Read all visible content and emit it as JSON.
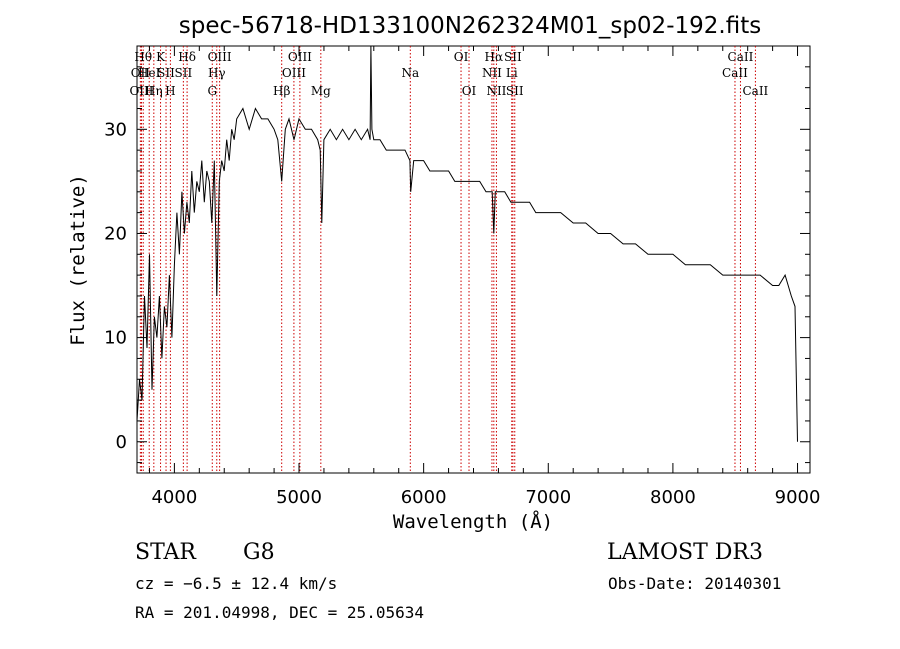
{
  "chart_data": {
    "type": "line",
    "title": "spec-56718-HD133100N262324M01_sp02-192.fits",
    "xlabel": "Wavelength (Å)",
    "ylabel": "Flux (relative)",
    "xlim": [
      3700,
      9100
    ],
    "ylim": [
      -3,
      38
    ],
    "xticks": [
      4000,
      5000,
      6000,
      7000,
      8000,
      9000
    ],
    "yticks": [
      0,
      10,
      20,
      30
    ],
    "grid": false,
    "line_color": "#000000",
    "marker_color": "#cc0000",
    "spectrum": {
      "name": "flux",
      "x": [
        3700,
        3720,
        3740,
        3760,
        3780,
        3800,
        3820,
        3840,
        3860,
        3880,
        3900,
        3920,
        3940,
        3960,
        3980,
        4000,
        4020,
        4040,
        4060,
        4080,
        4100,
        4120,
        4140,
        4160,
        4180,
        4200,
        4220,
        4240,
        4260,
        4280,
        4300,
        4320,
        4340,
        4360,
        4380,
        4400,
        4420,
        4440,
        4460,
        4480,
        4500,
        4550,
        4600,
        4650,
        4700,
        4750,
        4800,
        4830,
        4861,
        4890,
        4920,
        4960,
        5000,
        5050,
        5100,
        5150,
        5170,
        5183,
        5200,
        5250,
        5300,
        5350,
        5400,
        5450,
        5500,
        5550,
        5570,
        5577,
        5585,
        5600,
        5650,
        5700,
        5750,
        5800,
        5850,
        5890,
        5896,
        5920,
        5950,
        6000,
        6050,
        6100,
        6150,
        6200,
        6250,
        6300,
        6350,
        6400,
        6450,
        6500,
        6530,
        6550,
        6563,
        6575,
        6600,
        6650,
        6700,
        6750,
        6800,
        6850,
        6900,
        6950,
        7000,
        7100,
        7200,
        7300,
        7400,
        7500,
        7600,
        7700,
        7800,
        7900,
        8000,
        8100,
        8200,
        8300,
        8400,
        8500,
        8600,
        8700,
        8800,
        8850,
        8900,
        8950,
        8980,
        9000
      ],
      "y": [
        2,
        6,
        4,
        14,
        9,
        18,
        5,
        12,
        10,
        14,
        8,
        13,
        11,
        16,
        10,
        17,
        22,
        18,
        24,
        20,
        23,
        21,
        26,
        22,
        25,
        24,
        27,
        23,
        26,
        25,
        21,
        27,
        14,
        25,
        27,
        26,
        29,
        27,
        30,
        29,
        31,
        32,
        30,
        32,
        31,
        31,
        30,
        29,
        25,
        30,
        31,
        29,
        31,
        30,
        30,
        29,
        28,
        21,
        29,
        30,
        29,
        30,
        29,
        30,
        29,
        30,
        29,
        38,
        30,
        29,
        29,
        28,
        28,
        28,
        28,
        27,
        24,
        27,
        27,
        27,
        26,
        26,
        26,
        26,
        25,
        25,
        25,
        25,
        25,
        24,
        24,
        24,
        20,
        24,
        24,
        24,
        23,
        23,
        23,
        23,
        22,
        22,
        22,
        22,
        21,
        21,
        20,
        20,
        19,
        19,
        18,
        18,
        18,
        17,
        17,
        17,
        16,
        16,
        16,
        16,
        15,
        15,
        16,
        14,
        13,
        0
      ]
    },
    "line_markers": [
      {
        "wavelength": 3727,
        "label": "OII",
        "row": 2
      },
      {
        "wavelength": 3736,
        "label": "OIII",
        "row": 3
      },
      {
        "wavelength": 3750,
        "label": "Hθ",
        "row": 1
      },
      {
        "wavelength": 3798,
        "label": "HeI",
        "row": 2
      },
      {
        "wavelength": 3835,
        "label": "Hη",
        "row": 3
      },
      {
        "wavelength": 3889,
        "label": "K",
        "row": 1
      },
      {
        "wavelength": 3933,
        "label": "SII",
        "row": 2
      },
      {
        "wavelength": 3968,
        "label": "H",
        "row": 3
      },
      {
        "wavelength": 4072,
        "label": "SII",
        "row": 2
      },
      {
        "wavelength": 4102,
        "label": "Hδ",
        "row": 1
      },
      {
        "wavelength": 4304,
        "label": "G",
        "row": 3
      },
      {
        "wavelength": 4340,
        "label": "Hγ",
        "row": 2
      },
      {
        "wavelength": 4363,
        "label": "OIII",
        "row": 1
      },
      {
        "wavelength": 4861,
        "label": "Hβ",
        "row": 3
      },
      {
        "wavelength": 4959,
        "label": "OIII",
        "row": 2
      },
      {
        "wavelength": 5007,
        "label": "OIII",
        "row": 1
      },
      {
        "wavelength": 5175,
        "label": "Mg",
        "row": 3
      },
      {
        "wavelength": 5893,
        "label": "Na",
        "row": 2
      },
      {
        "wavelength": 6300,
        "label": "OI",
        "row": 1
      },
      {
        "wavelength": 6364,
        "label": "OI",
        "row": 3
      },
      {
        "wavelength": 6548,
        "label": "NII",
        "row": 2
      },
      {
        "wavelength": 6563,
        "label": "Hα",
        "row": 1
      },
      {
        "wavelength": 6584,
        "label": "NII",
        "row": 3
      },
      {
        "wavelength": 6707,
        "label": "Li",
        "row": 2
      },
      {
        "wavelength": 6716,
        "label": "SII",
        "row": 1
      },
      {
        "wavelength": 6731,
        "label": "SII",
        "row": 3
      },
      {
        "wavelength": 8498,
        "label": "CaII",
        "row": 2
      },
      {
        "wavelength": 8542,
        "label": "CaII",
        "row": 1
      },
      {
        "wavelength": 8662,
        "label": "CaII",
        "row": 3
      }
    ]
  },
  "info": {
    "object_class": "STAR",
    "subclass": "G8",
    "survey": "LAMOST DR3",
    "redshift_line": "cz = −6.5 ± 12.4 km/s",
    "obs_date": "Obs-Date: 20140301",
    "coords": "RA = 201.04998, DEC =  25.05634"
  }
}
